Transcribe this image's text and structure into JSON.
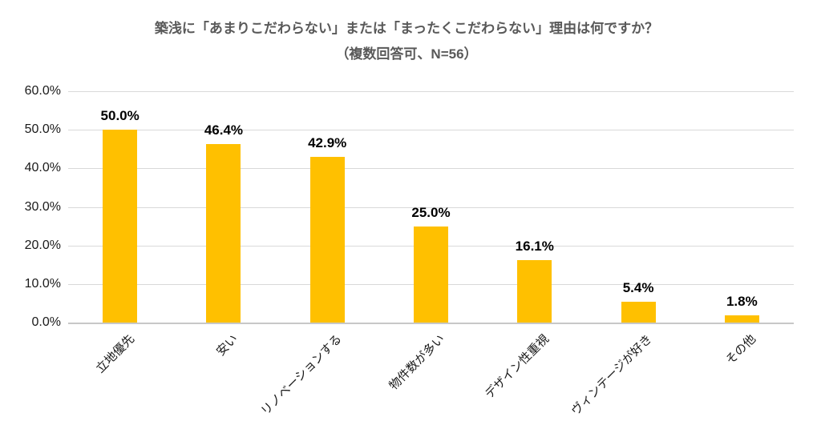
{
  "title": {
    "line1": "築浅に「あまりこだわらない」または「まったくこだわらない」理由は何ですか？",
    "line2": "（複数回答可、N=56）"
  },
  "chart_data": {
    "type": "bar",
    "title": "築浅に「あまりこだわらない」または「まったくこだわらない」理由は何ですか？（複数回答可、N=56）",
    "categories": [
      "立地優先",
      "安い",
      "リノベーションする",
      "物件数が多い",
      "デザイン性重視",
      "ヴィンテージが好き",
      "その他"
    ],
    "values": [
      50.0,
      46.4,
      42.9,
      25.0,
      16.1,
      5.4,
      1.8
    ],
    "data_labels": [
      "50.0%",
      "46.4%",
      "42.9%",
      "25.0%",
      "16.1%",
      "5.4%",
      "1.8%"
    ],
    "xlabel": "",
    "ylabel": "",
    "ylim": [
      0,
      60
    ],
    "ytick_step": 10,
    "ytick_labels": [
      "0.0%",
      "10.0%",
      "20.0%",
      "30.0%",
      "40.0%",
      "50.0%",
      "60.0%"
    ],
    "grid": true,
    "legend": false,
    "x_label_rotation_deg": 45
  },
  "colors": {
    "bar": "#FFC000",
    "gridline": "#D9D9D9",
    "axis_line": "#C8C8C8",
    "title_text": "#595959",
    "axis_text": "#1A1A1A",
    "data_label_text": "#000000"
  }
}
